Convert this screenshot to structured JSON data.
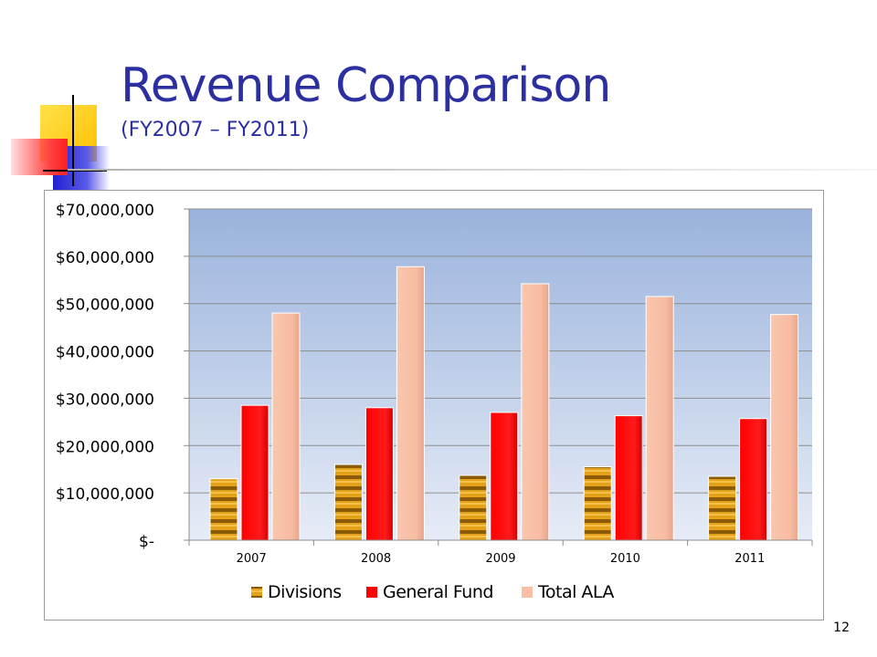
{
  "slide": {
    "title": "Revenue Comparison",
    "subtitle": "(FY2007 – FY2011)",
    "page_number": "12"
  },
  "colors": {
    "title": "#2b2fa0",
    "plot_top": "#9ab3dc",
    "plot_bottom": "#e3eaf6",
    "divisions": "#c8860f",
    "general_fund": "#ff0000",
    "total_ala": "#f8bfa5"
  },
  "chart_data": {
    "type": "bar",
    "categories": [
      "2007",
      "2008",
      "2009",
      "2010",
      "2011"
    ],
    "series": [
      {
        "name": "Divisions",
        "values": [
          13000000,
          16000000,
          13700000,
          15500000,
          13500000
        ]
      },
      {
        "name": "General Fund",
        "values": [
          28500000,
          28000000,
          27000000,
          26300000,
          25700000
        ]
      },
      {
        "name": "Total ALA",
        "values": [
          48000000,
          57800000,
          54200000,
          51500000,
          47700000
        ]
      }
    ],
    "yticks": [
      0,
      10000000,
      20000000,
      30000000,
      40000000,
      50000000,
      60000000,
      70000000
    ],
    "ytick_labels": [
      "$-",
      "$10,000,000",
      "$20,000,000",
      "$30,000,000",
      "$40,000,000",
      "$50,000,000",
      "$60,000,000",
      "$70,000,000"
    ],
    "ylim": [
      0,
      70000000
    ],
    "grid": true,
    "legend": "bottom"
  }
}
